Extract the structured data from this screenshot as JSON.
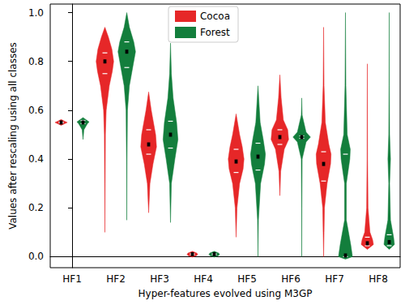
{
  "chart_data": {
    "type": "violin",
    "xlabel": "Hyper-features evolved using M3GP",
    "ylabel": "Values after rescaling using all classes",
    "categories": [
      "HF1",
      "HF2",
      "HF3",
      "HF4",
      "HF5",
      "HF6",
      "HF7",
      "HF8"
    ],
    "ylim": [
      -0.045,
      1.035
    ],
    "yticks": [
      {
        "value": 0,
        "label": "0.0"
      },
      {
        "value": 0.2,
        "label": "0.2"
      },
      {
        "value": 0.4,
        "label": "0.4"
      },
      {
        "value": 0.6,
        "label": "0.6"
      },
      {
        "value": 0.8,
        "label": "0.8"
      },
      {
        "value": 1,
        "label": "1.0"
      }
    ],
    "legend": "top",
    "series": [
      {
        "name": "Cocoa",
        "color": "#e62728",
        "violins": [
          {
            "shape": [
              [
                0.538,
                0
              ],
              [
                0.545,
                0.4
              ],
              [
                0.55,
                0.7
              ],
              [
                0.555,
                0.4
              ],
              [
                0.562,
                0
              ]
            ],
            "q1": 0.548,
            "median": 0.55,
            "q3": 0.552
          },
          {
            "shape": [
              [
                0.1,
                0
              ],
              [
                0.3,
                0.03
              ],
              [
                0.5,
                0.06
              ],
              [
                0.6,
                0.15
              ],
              [
                0.7,
                0.5
              ],
              [
                0.76,
                0.85
              ],
              [
                0.8,
                1
              ],
              [
                0.85,
                0.8
              ],
              [
                0.9,
                0.4
              ],
              [
                0.94,
                0
              ]
            ],
            "q1": 0.75,
            "median": 0.8,
            "q3": 0.835
          },
          {
            "shape": [
              [
                0.18,
                0
              ],
              [
                0.3,
                0.15
              ],
              [
                0.38,
                0.5
              ],
              [
                0.45,
                0.9
              ],
              [
                0.5,
                0.8
              ],
              [
                0.55,
                0.55
              ],
              [
                0.6,
                0.3
              ],
              [
                0.675,
                0
              ]
            ],
            "q1": 0.42,
            "median": 0.46,
            "q3": 0.52
          },
          {
            "shape": [
              [
                -0.002,
                0
              ],
              [
                0.005,
                0.5
              ],
              [
                0.01,
                0.6
              ],
              [
                0.015,
                0.5
              ],
              [
                0.022,
                0
              ]
            ],
            "q1": 0.008,
            "median": 0.01,
            "q3": 0.012
          },
          {
            "shape": [
              [
                0.08,
                0
              ],
              [
                0.2,
                0.1
              ],
              [
                0.3,
                0.4
              ],
              [
                0.36,
                0.8
              ],
              [
                0.4,
                0.9
              ],
              [
                0.45,
                0.7
              ],
              [
                0.5,
                0.4
              ],
              [
                0.585,
                0
              ]
            ],
            "q1": 0.345,
            "median": 0.39,
            "q3": 0.44
          },
          {
            "shape": [
              [
                0.25,
                0
              ],
              [
                0.35,
                0.1
              ],
              [
                0.44,
                0.5
              ],
              [
                0.48,
                1
              ],
              [
                0.52,
                0.9
              ],
              [
                0.56,
                0.4
              ],
              [
                0.65,
                0.15
              ],
              [
                0.745,
                0
              ]
            ],
            "q1": 0.46,
            "median": 0.49,
            "q3": 0.52
          },
          {
            "shape": [
              [
                0,
                0
              ],
              [
                0.1,
                0.05
              ],
              [
                0.2,
                0.1
              ],
              [
                0.3,
                0.4
              ],
              [
                0.38,
                0.8
              ],
              [
                0.42,
                0.85
              ],
              [
                0.46,
                0.6
              ],
              [
                0.55,
                0.2
              ],
              [
                0.7,
                0.05
              ],
              [
                0.94,
                0
              ]
            ],
            "q1": 0.31,
            "median": 0.38,
            "q3": 0.43
          },
          {
            "shape": [
              [
                0.03,
                0
              ],
              [
                0.05,
                0.7
              ],
              [
                0.07,
                0.6
              ],
              [
                0.1,
                0.3
              ],
              [
                0.2,
                0.08
              ],
              [
                0.4,
                0.03
              ],
              [
                0.6,
                0.02
              ],
              [
                0.79,
                0
              ]
            ],
            "q1": 0.045,
            "median": 0.055,
            "q3": 0.08
          }
        ]
      },
      {
        "name": "Forest",
        "color": "#137e3c",
        "violins": [
          {
            "shape": [
              [
                0.48,
                0
              ],
              [
                0.52,
                0.1
              ],
              [
                0.545,
                0.5
              ],
              [
                0.552,
                0.7
              ],
              [
                0.56,
                0.4
              ],
              [
                0.57,
                0
              ]
            ],
            "q1": 0.545,
            "median": 0.55,
            "q3": 0.558
          },
          {
            "shape": [
              [
                0.15,
                0
              ],
              [
                0.4,
                0.03
              ],
              [
                0.6,
                0.08
              ],
              [
                0.7,
                0.3
              ],
              [
                0.78,
                0.7
              ],
              [
                0.84,
                1
              ],
              [
                0.88,
                0.8
              ],
              [
                0.94,
                0.3
              ],
              [
                1.0,
                0
              ]
            ],
            "q1": 0.775,
            "median": 0.84,
            "q3": 0.88
          },
          {
            "shape": [
              [
                0.14,
                0
              ],
              [
                0.3,
                0.1
              ],
              [
                0.4,
                0.5
              ],
              [
                0.48,
                0.85
              ],
              [
                0.55,
                0.7
              ],
              [
                0.65,
                0.3
              ],
              [
                0.75,
                0.1
              ],
              [
                0.875,
                0
              ]
            ],
            "q1": 0.445,
            "median": 0.5,
            "q3": 0.555
          },
          {
            "shape": [
              [
                -0.002,
                0
              ],
              [
                0.005,
                0.5
              ],
              [
                0.01,
                0.6
              ],
              [
                0.015,
                0.5
              ],
              [
                0.022,
                0
              ]
            ],
            "q1": 0.008,
            "median": 0.01,
            "q3": 0.012
          },
          {
            "shape": [
              [
                0,
                0
              ],
              [
                0.15,
                0.05
              ],
              [
                0.3,
                0.3
              ],
              [
                0.38,
                0.75
              ],
              [
                0.42,
                0.85
              ],
              [
                0.48,
                0.6
              ],
              [
                0.55,
                0.25
              ],
              [
                0.7,
                0
              ]
            ],
            "q1": 0.355,
            "median": 0.41,
            "q3": 0.465
          },
          {
            "shape": [
              [
                0,
                0
              ],
              [
                0.2,
                0.02
              ],
              [
                0.4,
                0.05
              ],
              [
                0.47,
                0.5
              ],
              [
                0.49,
                1
              ],
              [
                0.51,
                0.5
              ],
              [
                0.58,
                0.05
              ],
              [
                0.65,
                0
              ]
            ],
            "q1": 0.485,
            "median": 0.49,
            "q3": 0.495
          },
          {
            "shape": [
              [
                -0.01,
                0
              ],
              [
                0,
                0.8
              ],
              [
                0.05,
                0.6
              ],
              [
                0.15,
                0.1
              ],
              [
                0.3,
                0.1
              ],
              [
                0.4,
                0.5
              ],
              [
                0.44,
                0.55
              ],
              [
                0.5,
                0.2
              ],
              [
                0.7,
                0.05
              ],
              [
                1.0,
                0
              ]
            ],
            "q1": 0.0,
            "median": 0.005,
            "q3": 0.42
          },
          {
            "shape": [
              [
                0.03,
                0
              ],
              [
                0.05,
                0.6
              ],
              [
                0.08,
                0.5
              ],
              [
                0.15,
                0.15
              ],
              [
                0.3,
                0.05
              ],
              [
                0.4,
                0.15
              ],
              [
                0.5,
                0.05
              ],
              [
                0.7,
                0.02
              ],
              [
                1.0,
                0
              ]
            ],
            "q1": 0.045,
            "median": 0.06,
            "q3": 0.09
          }
        ]
      }
    ]
  }
}
